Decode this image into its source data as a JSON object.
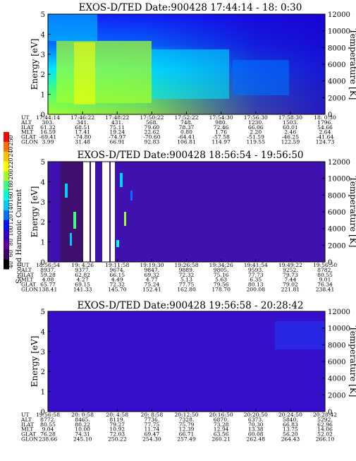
{
  "colors": {
    "scale": [
      "#000000",
      "#400060",
      "#5a00a0",
      "#3000c8",
      "#0010ff",
      "#0070ff",
      "#00c8ff",
      "#00ffd8",
      "#40ff80",
      "#a0ff30",
      "#ffff00",
      "#ffc000",
      "#ff7000",
      "#ff0000"
    ],
    "background": "#ffffff"
  },
  "colorbar": {
    "label": "Second Harmonic Current",
    "ticks": [
      "250",
      "240",
      "220",
      "200",
      "180",
      "160",
      "140",
      "120",
      "100",
      "80",
      "60",
      "40"
    ]
  },
  "chart_data": [
    {
      "type": "heatmap",
      "title": "EXOS-D/TED   Date:900428   17:44:14 - 18: 0:30",
      "ylabel": "Energy [eV]",
      "y2label": "Temperature [K]",
      "ylim": [
        0,
        5
      ],
      "y2lim": [
        0,
        12000
      ],
      "yticks": [
        "0",
        "1",
        "2",
        "3",
        "4",
        "5"
      ],
      "y2ticks": [
        "0",
        "2000",
        "4000",
        "6000",
        "8000",
        "10000",
        "12000"
      ],
      "ephemeris_rows": [
        "UT",
        "ALT",
        "ILAT",
        "MLT",
        "GLAT",
        "GLON"
      ],
      "columns": [
        {
          "UT": "17:44:14",
          "ALT": "303.",
          "ILAT": "61.32",
          "MLT": "16.59",
          "GLAT": "-69.41",
          "GLON": "3.99"
        },
        {
          "UT": "17:46:22",
          "ALT": "341.",
          "ILAT": "68.51",
          "MLT": "17.41",
          "GLAT": "-74.80",
          "GLON": "31.48"
        },
        {
          "UT": "17:48:22",
          "ALT": "431.",
          "ILAT": "75.11",
          "MLT": "19.24",
          "GLAT": "-74.97",
          "GLON": "66.91"
        },
        {
          "UT": "17:50:22",
          "ALT": "568.",
          "ILAT": "79.60",
          "MLT": "22.62",
          "GLAT": "-70.60",
          "GLON": "92.83"
        },
        {
          "UT": "17:52:22",
          "ALT": "748.",
          "ILAT": "78.37",
          "MLT": "0.80",
          "GLAT": "-64.41",
          "GLON": "106.81"
        },
        {
          "UT": "17:54:30",
          "ALT": "980.",
          "ILAT": "72.46",
          "MLT": "1.76",
          "GLAT": "-57.58",
          "GLON": "114.97"
        },
        {
          "UT": "17:56:30",
          "ALT": "1230.",
          "ILAT": "66.06",
          "MLT": "2.20",
          "GLAT": "-51.59",
          "GLON": "119.55"
        },
        {
          "UT": "17:58:30",
          "ALT": "1503.",
          "ILAT": "60.01",
          "MLT": "2.46",
          "GLAT": "-46.25",
          "GLON": "122.59"
        },
        {
          "UT": "18: 0:30",
          "ALT": "1796.",
          "ILAT": "54.66",
          "MLT": "2.64",
          "GLAT": "-41.64",
          "GLON": "124.73"
        }
      ]
    },
    {
      "type": "heatmap",
      "title": "EXOS-D/TED   Date:900428   18:56:54 - 19:56:50",
      "ylabel": "Energy [eV]",
      "y2label": "Temperature [K]",
      "ylim": [
        0,
        5
      ],
      "y2lim": [
        0,
        12000
      ],
      "yticks": [
        "0",
        "1",
        "2",
        "3",
        "4",
        "5"
      ],
      "y2ticks": [
        "0",
        "2000",
        "4000",
        "6000",
        "8000",
        "10000",
        "12000"
      ],
      "ephemeris_rows": [
        "UT",
        "ALT",
        "ILAT",
        "MLT",
        "GLAT",
        "GLON"
      ],
      "columns": [
        {
          "UT": "18:56:54",
          "ALT": "8937.",
          "ILAT": "59.28",
          "MLT": "4.08",
          "GLAT": "65.77",
          "GLON": "138.41"
        },
        {
          "UT": "19: 4:26",
          "ALT": "9377.",
          "ILAT": "62.82",
          "MLT": "4.27",
          "GLAT": "69.15",
          "GLON": "141.33"
        },
        {
          "UT": "19:11:58",
          "ALT": "9674.",
          "ILAT": "66.15",
          "MLT": "4.49",
          "GLAT": "72.32",
          "GLON": "145.70"
        },
        {
          "UT": "19:19:30",
          "ALT": "9847.",
          "ILAT": "69.32",
          "MLT": "4.77",
          "GLAT": "75.24",
          "GLON": "152.41"
        },
        {
          "UT": "19:26:58",
          "ALT": "9889.",
          "ILAT": "72.32",
          "MLT": "5.13",
          "GLAT": "77.75",
          "GLON": "162.80"
        },
        {
          "UT": "19:34:26",
          "ALT": "9805.",
          "ILAT": "75.16",
          "MLT": "5.63",
          "GLAT": "79.56",
          "GLON": "178.70"
        },
        {
          "UT": "19:41:54",
          "ALT": "9593.",
          "ILAT": "77.73",
          "MLT": "6.35",
          "GLAT": "80.13",
          "GLON": "200.08"
        },
        {
          "UT": "19:49:22",
          "ALT": "9252.",
          "ILAT": "79.73",
          "MLT": "7.44",
          "GLAT": "79.02",
          "GLON": "221.81"
        },
        {
          "UT": "19:56:50",
          "ALT": "8782.",
          "ILAT": "80.55",
          "MLT": "9.01",
          "GLAT": "76.34",
          "GLON": "238.41"
        }
      ]
    },
    {
      "type": "heatmap",
      "title": "EXOS-D/TED   Date:900428   19:56:58 - 20:28:42",
      "ylabel": "Energy [eV]",
      "y2label": "Temperature [K]",
      "ylim": [
        0,
        5
      ],
      "y2lim": [
        0,
        12000
      ],
      "yticks": [
        "0",
        "1",
        "2",
        "3",
        "4",
        "5"
      ],
      "y2ticks": [
        "0",
        "2000",
        "4000",
        "6000",
        "8000",
        "10000",
        "12000"
      ],
      "ephemeris_rows": [
        "UT",
        "ALT",
        "ILAT",
        "MLT",
        "GLAT",
        "GLON"
      ],
      "columns": [
        {
          "UT": "19:56:58",
          "ALT": "8772.",
          "ILAT": "80.55",
          "MLT": "9.04",
          "GLAT": "76.28",
          "GLON": "238.66"
        },
        {
          "UT": "20: 0:58",
          "ALT": "8465.",
          "ILAT": "80.22",
          "MLT": "10.00",
          "GLAT": "74.31",
          "GLON": "245.10"
        },
        {
          "UT": "20: 4:58",
          "ALT": "8119.",
          "ILAT": "79.27",
          "MLT": "10.92",
          "GLAT": "72.03",
          "GLON": "250.22"
        },
        {
          "UT": "20: 8:58",
          "ALT": "7736.",
          "ILAT": "77.75",
          "MLT": "11.74",
          "GLAT": "69.47",
          "GLON": "254.30"
        },
        {
          "UT": "20:12:50",
          "ALT": "7328.",
          "ILAT": "75.79",
          "MLT": "12.39",
          "GLAT": "66.71",
          "GLON": "257.49"
        },
        {
          "UT": "20:16:50",
          "ALT": "6870.",
          "ILAT": "73.28",
          "MLT": "12.94",
          "GLAT": "63.56",
          "GLON": "260.21"
        },
        {
          "UT": "20:20:50",
          "ALT": "6373.",
          "ILAT": "70.30",
          "MLT": "13.38",
          "GLAT": "60.08",
          "GLON": "262.48"
        },
        {
          "UT": "20:24:50",
          "ALT": "5840.",
          "ILAT": "66.83",
          "MLT": "13.75",
          "GLAT": "56.20",
          "GLON": "264.43"
        },
        {
          "UT": "20:28:42",
          "ALT": "5292.",
          "ILAT": "62.96",
          "MLT": "14.06",
          "GLAT": "52.02",
          "GLON": "266.10"
        }
      ]
    }
  ]
}
